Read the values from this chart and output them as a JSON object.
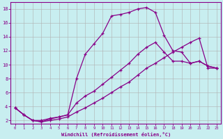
{
  "xlabel": "Windchill (Refroidissement éolien,°C)",
  "bg_color": "#c8eef0",
  "line_color": "#880088",
  "grid_color": "#b0b0b0",
  "xlim": [
    -0.5,
    23.5
  ],
  "ylim": [
    1.5,
    19.0
  ],
  "xticks": [
    0,
    1,
    2,
    3,
    4,
    5,
    6,
    7,
    8,
    9,
    10,
    11,
    12,
    13,
    14,
    15,
    16,
    17,
    18,
    19,
    20,
    21,
    22,
    23
  ],
  "yticks": [
    2,
    4,
    6,
    8,
    10,
    12,
    14,
    16,
    18
  ],
  "line1_x": [
    0,
    1,
    2,
    3,
    4,
    5,
    6,
    7,
    8,
    9,
    10,
    11,
    12,
    13,
    14,
    15,
    16,
    17,
    18,
    19,
    20,
    21,
    22,
    23
  ],
  "line1_y": [
    3.8,
    2.8,
    2.0,
    2.0,
    2.3,
    2.5,
    2.8,
    8.0,
    11.5,
    13.0,
    14.5,
    17.0,
    17.2,
    17.5,
    18.0,
    18.2,
    17.5,
    14.2,
    12.0,
    11.8,
    10.2,
    10.5,
    9.8,
    9.5
  ],
  "line2_x": [
    0,
    1,
    2,
    3,
    4,
    5,
    6,
    7,
    8,
    9,
    10,
    11,
    12,
    13,
    14,
    15,
    16,
    17,
    18,
    19,
    20,
    21,
    22,
    23
  ],
  "line2_y": [
    3.8,
    2.8,
    2.0,
    1.8,
    2.2,
    2.5,
    2.8,
    4.5,
    5.5,
    6.2,
    7.2,
    8.2,
    9.2,
    10.2,
    11.5,
    12.5,
    13.2,
    11.8,
    10.5,
    10.5,
    10.2,
    10.5,
    9.8,
    9.5
  ],
  "line3_x": [
    0,
    1,
    2,
    3,
    4,
    5,
    6,
    7,
    8,
    9,
    10,
    11,
    12,
    13,
    14,
    15,
    16,
    17,
    18,
    19,
    20,
    21,
    22,
    23
  ],
  "line3_y": [
    3.8,
    2.8,
    2.0,
    1.8,
    2.0,
    2.2,
    2.5,
    3.2,
    3.8,
    4.5,
    5.2,
    6.0,
    6.8,
    7.5,
    8.5,
    9.5,
    10.2,
    11.0,
    11.8,
    12.5,
    13.2,
    13.8,
    9.5,
    9.5
  ]
}
